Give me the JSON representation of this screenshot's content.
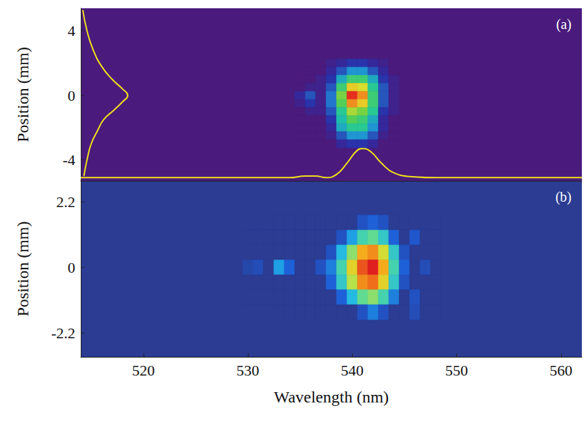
{
  "chart_data": [
    {
      "type": "heatmap",
      "label": "(a)",
      "ylabel": "Position (mm)",
      "xlim": [
        514,
        562
      ],
      "ylim": [
        -5.3,
        5.4
      ],
      "yticks": [
        -4,
        0,
        4
      ],
      "tick_labels": "y",
      "grid": false,
      "zlim": [
        0,
        1
      ],
      "heatmap": {
        "x": [
          535,
          536,
          537,
          538,
          539,
          540,
          541,
          542,
          543,
          544
        ],
        "y": [
          2,
          1.5,
          1,
          0.5,
          0,
          -0.5,
          -1,
          -1.5,
          -2,
          -2.5,
          -3
        ],
        "z": [
          [
            0,
            0,
            0,
            0.05,
            0.1,
            0.15,
            0.15,
            0.1,
            0.05,
            0
          ],
          [
            0,
            0,
            0,
            0.1,
            0.2,
            0.3,
            0.3,
            0.2,
            0.1,
            0
          ],
          [
            0,
            0,
            0.05,
            0.15,
            0.35,
            0.5,
            0.5,
            0.35,
            0.15,
            0.05
          ],
          [
            0,
            0.05,
            0.05,
            0.2,
            0.5,
            0.75,
            0.7,
            0.45,
            0.2,
            0.05
          ],
          [
            0.1,
            0.2,
            0.05,
            0.25,
            0.6,
            0.98,
            0.85,
            0.5,
            0.2,
            0.05
          ],
          [
            0.05,
            0.15,
            0.05,
            0.25,
            0.55,
            0.85,
            0.75,
            0.5,
            0.2,
            0.05
          ],
          [
            0,
            0.05,
            0.05,
            0.2,
            0.45,
            0.65,
            0.6,
            0.45,
            0.15,
            0.05
          ],
          [
            0,
            0,
            0,
            0.15,
            0.4,
            0.55,
            0.5,
            0.35,
            0.1,
            0
          ],
          [
            0,
            0,
            0,
            0.1,
            0.35,
            0.45,
            0.45,
            0.3,
            0.1,
            0
          ],
          [
            0,
            0,
            0,
            0.05,
            0.2,
            0.3,
            0.3,
            0.2,
            0.05,
            0
          ],
          [
            0,
            0,
            0,
            0,
            0.1,
            0.15,
            0.15,
            0.1,
            0,
            0
          ]
        ]
      },
      "profiles": [
        {
          "type": "line",
          "color": "#f2e21a",
          "x": [
            514.2,
            514.6,
            515.2,
            516.0,
            517.0,
            518.0,
            518.5,
            518.0,
            517.2,
            516.2,
            515.6,
            515.0,
            514.6,
            514.3
          ],
          "y": [
            5.3,
            4.0,
            2.8,
            1.8,
            1.0,
            0.4,
            0,
            -0.4,
            -0.9,
            -1.5,
            -2.2,
            -3.0,
            -4.0,
            -5.0
          ]
        },
        {
          "type": "line",
          "color": "#f2e21a",
          "x": [
            514,
            530,
            534,
            535.5,
            536.5,
            537.5,
            538.5,
            539.5,
            540.5,
            541,
            541.8,
            542.8,
            544,
            546,
            548,
            562
          ],
          "y": [
            -5.1,
            -5.1,
            -5.1,
            -5.0,
            -5.0,
            -5.1,
            -4.9,
            -4.2,
            -3.4,
            -3.3,
            -3.5,
            -4.2,
            -4.8,
            -5.05,
            -5.1,
            -5.1
          ]
        }
      ]
    },
    {
      "type": "heatmap",
      "label": "(b)",
      "ylabel": "Position (mm)",
      "xlabel": "Wavelength (nm)",
      "xlim": [
        514,
        562
      ],
      "xticks": [
        520,
        530,
        540,
        550,
        560
      ],
      "ylim": [
        -3.0,
        2.9
      ],
      "yticks": [
        -2.2,
        0,
        2.2
      ],
      "grid": false,
      "zlim": [
        0,
        1
      ],
      "heatmap": {
        "x": [
          530,
          531,
          532,
          533,
          534,
          535,
          536,
          537,
          538,
          539,
          540,
          541,
          542,
          543,
          544,
          545,
          546,
          547,
          548
        ],
        "y": [
          1.5,
          1,
          0.5,
          0,
          -0.5,
          -1,
          -1.5
        ],
        "z": [
          [
            0,
            0,
            0,
            0,
            0,
            0,
            0,
            0,
            0,
            0,
            0,
            0.1,
            0.15,
            0.1,
            0,
            0,
            0,
            0,
            0
          ],
          [
            0,
            0,
            0,
            0,
            0,
            0,
            0,
            0,
            0,
            0.1,
            0.25,
            0.4,
            0.45,
            0.35,
            0.15,
            0,
            0.12,
            0,
            0
          ],
          [
            0,
            0,
            0,
            0,
            0,
            0,
            0,
            0,
            0.1,
            0.3,
            0.5,
            0.75,
            0.8,
            0.6,
            0.35,
            0.1,
            0,
            0,
            0
          ],
          [
            0.05,
            0.08,
            0,
            0.25,
            0.15,
            0,
            0,
            0.1,
            0.2,
            0.4,
            0.65,
            0.9,
            1,
            0.75,
            0.4,
            0.15,
            0,
            0.08,
            0
          ],
          [
            0,
            0,
            0,
            0,
            0,
            0,
            0,
            0,
            0.15,
            0.35,
            0.55,
            0.8,
            0.85,
            0.65,
            0.35,
            0.1,
            0,
            0,
            0
          ],
          [
            0,
            0,
            0,
            0,
            0,
            0,
            0,
            0,
            0,
            0.15,
            0.3,
            0.45,
            0.5,
            0.4,
            0.2,
            0,
            0.1,
            0,
            0
          ],
          [
            0,
            0,
            0,
            0,
            0,
            0,
            0,
            0,
            0,
            0,
            0,
            0.1,
            0.2,
            0.1,
            0,
            0,
            0.08,
            0,
            0
          ]
        ]
      }
    }
  ]
}
